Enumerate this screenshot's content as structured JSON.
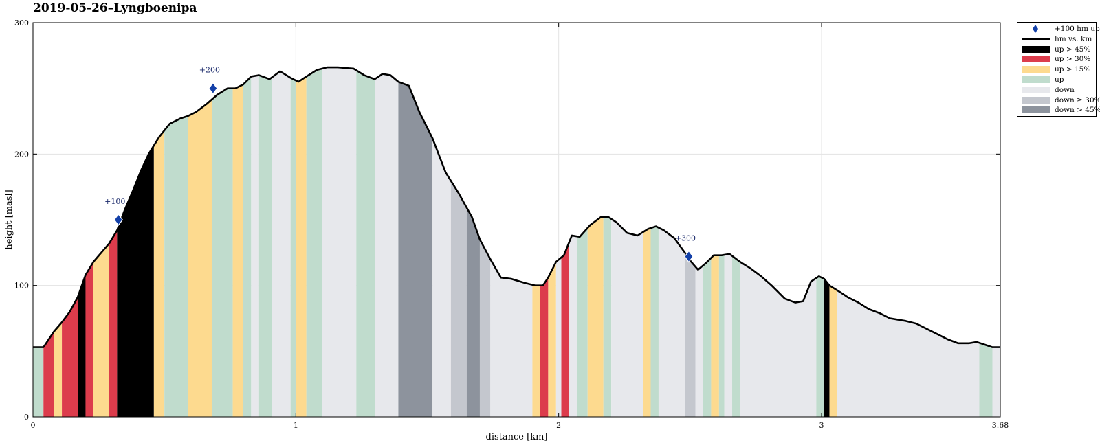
{
  "title": "2019-05-26–Lyngboenipa",
  "chart_data": {
    "type": "area",
    "title": "2019-05-26–Lyngboenipa",
    "xlabel": "distance [km]",
    "ylabel": "height [masl]",
    "xlim": [
      0,
      3.68
    ],
    "ylim": [
      0,
      300
    ],
    "xticks": [
      0,
      1,
      2,
      3,
      3.68
    ],
    "xtick_labels": [
      "0",
      "1",
      "2",
      "3",
      "3.68"
    ],
    "yticks": [
      0,
      100,
      200,
      300
    ],
    "ytick_labels": [
      "0",
      "100",
      "200",
      "300"
    ],
    "grid": true,
    "legend_position": "outside-right",
    "series": [
      {
        "name": "hm vs. km",
        "x": [
          0,
          0.04,
          0.08,
          0.11,
          0.14,
          0.17,
          0.2,
          0.23,
          0.26,
          0.29,
          0.32,
          0.35,
          0.38,
          0.41,
          0.44,
          0.48,
          0.52,
          0.56,
          0.59,
          0.62,
          0.66,
          0.7,
          0.74,
          0.77,
          0.8,
          0.83,
          0.86,
          0.9,
          0.94,
          0.98,
          1.01,
          1.04,
          1.08,
          1.12,
          1.16,
          1.22,
          1.26,
          1.3,
          1.33,
          1.36,
          1.39,
          1.43,
          1.47,
          1.52,
          1.57,
          1.62,
          1.67,
          1.7,
          1.74,
          1.78,
          1.82,
          1.87,
          1.91,
          1.94,
          1.96,
          1.99,
          2.02,
          2.05,
          2.08,
          2.12,
          2.16,
          2.19,
          2.22,
          2.26,
          2.3,
          2.34,
          2.37,
          2.4,
          2.44,
          2.48,
          2.5,
          2.53,
          2.56,
          2.59,
          2.62,
          2.65,
          2.69,
          2.73,
          2.77,
          2.81,
          2.86,
          2.9,
          2.93,
          2.96,
          2.99,
          3.01,
          3.03,
          3.07,
          3.1,
          3.14,
          3.18,
          3.22,
          3.26,
          3.29,
          3.32,
          3.36,
          3.4,
          3.44,
          3.48,
          3.52,
          3.56,
          3.59,
          3.62,
          3.65,
          3.68
        ],
        "y": [
          53,
          53,
          65,
          72,
          80,
          91,
          108,
          118,
          125,
          132,
          142,
          158,
          172,
          187,
          200,
          213,
          223,
          227,
          229,
          232,
          238,
          245,
          250,
          250,
          253,
          259,
          260,
          257,
          263,
          258,
          255,
          259,
          264,
          266,
          266,
          265,
          260,
          257,
          261,
          260,
          255,
          252,
          232,
          212,
          186,
          170,
          152,
          135,
          120,
          106,
          105,
          102,
          100,
          100,
          106,
          118,
          123,
          138,
          137,
          146,
          152,
          152,
          148,
          140,
          138,
          143,
          145,
          142,
          136,
          125,
          119,
          112,
          117,
          123,
          123,
          124,
          118,
          113,
          107,
          100,
          90,
          87,
          88,
          103,
          107,
          105,
          100,
          95,
          91,
          87,
          82,
          79,
          75,
          74,
          73,
          71,
          67,
          63,
          59,
          56,
          56,
          57,
          55,
          53,
          53
        ]
      }
    ],
    "markers": {
      "name": "+100 hm up",
      "points": [
        {
          "x": 0.325,
          "y": 150,
          "label": "+100"
        },
        {
          "x": 0.685,
          "y": 250,
          "label": "+200"
        },
        {
          "x": 2.495,
          "y": 122,
          "label": "+300"
        }
      ]
    },
    "gradient_bands": [
      {
        "from": 0.0,
        "to": 0.04,
        "cat": "up"
      },
      {
        "from": 0.04,
        "to": 0.08,
        "cat": "up30"
      },
      {
        "from": 0.08,
        "to": 0.11,
        "cat": "up15"
      },
      {
        "from": 0.11,
        "to": 0.17,
        "cat": "up30"
      },
      {
        "from": 0.17,
        "to": 0.2,
        "cat": "up45"
      },
      {
        "from": 0.2,
        "to": 0.23,
        "cat": "up30"
      },
      {
        "from": 0.23,
        "to": 0.29,
        "cat": "up15"
      },
      {
        "from": 0.29,
        "to": 0.32,
        "cat": "up30"
      },
      {
        "from": 0.32,
        "to": 0.46,
        "cat": "up45"
      },
      {
        "from": 0.46,
        "to": 0.5,
        "cat": "up15"
      },
      {
        "from": 0.5,
        "to": 0.59,
        "cat": "up"
      },
      {
        "from": 0.59,
        "to": 0.68,
        "cat": "up15"
      },
      {
        "from": 0.68,
        "to": 0.76,
        "cat": "up"
      },
      {
        "from": 0.76,
        "to": 0.8,
        "cat": "up15"
      },
      {
        "from": 0.8,
        "to": 0.83,
        "cat": "up"
      },
      {
        "from": 0.83,
        "to": 0.86,
        "cat": "down"
      },
      {
        "from": 0.86,
        "to": 0.91,
        "cat": "up"
      },
      {
        "from": 0.91,
        "to": 0.98,
        "cat": "down"
      },
      {
        "from": 0.98,
        "to": 1.0,
        "cat": "up"
      },
      {
        "from": 1.0,
        "to": 1.04,
        "cat": "up15"
      },
      {
        "from": 1.04,
        "to": 1.1,
        "cat": "up"
      },
      {
        "from": 1.1,
        "to": 1.23,
        "cat": "down"
      },
      {
        "from": 1.23,
        "to": 1.3,
        "cat": "up"
      },
      {
        "from": 1.3,
        "to": 1.39,
        "cat": "down"
      },
      {
        "from": 1.39,
        "to": 1.52,
        "cat": "down45"
      },
      {
        "from": 1.52,
        "to": 1.59,
        "cat": "down"
      },
      {
        "from": 1.59,
        "to": 1.65,
        "cat": "down30"
      },
      {
        "from": 1.65,
        "to": 1.7,
        "cat": "down45"
      },
      {
        "from": 1.7,
        "to": 1.74,
        "cat": "down30"
      },
      {
        "from": 1.74,
        "to": 1.9,
        "cat": "down"
      },
      {
        "from": 1.9,
        "to": 1.93,
        "cat": "up15"
      },
      {
        "from": 1.93,
        "to": 1.96,
        "cat": "up30"
      },
      {
        "from": 1.96,
        "to": 1.99,
        "cat": "up15"
      },
      {
        "from": 1.99,
        "to": 2.01,
        "cat": "down"
      },
      {
        "from": 2.01,
        "to": 2.04,
        "cat": "up30"
      },
      {
        "from": 2.04,
        "to": 2.07,
        "cat": "down"
      },
      {
        "from": 2.07,
        "to": 2.11,
        "cat": "up"
      },
      {
        "from": 2.11,
        "to": 2.17,
        "cat": "up15"
      },
      {
        "from": 2.17,
        "to": 2.2,
        "cat": "up"
      },
      {
        "from": 2.2,
        "to": 2.32,
        "cat": "down"
      },
      {
        "from": 2.32,
        "to": 2.35,
        "cat": "up15"
      },
      {
        "from": 2.35,
        "to": 2.38,
        "cat": "up"
      },
      {
        "from": 2.38,
        "to": 2.48,
        "cat": "down"
      },
      {
        "from": 2.48,
        "to": 2.52,
        "cat": "down30"
      },
      {
        "from": 2.52,
        "to": 2.55,
        "cat": "down"
      },
      {
        "from": 2.55,
        "to": 2.58,
        "cat": "up"
      },
      {
        "from": 2.58,
        "to": 2.61,
        "cat": "up15"
      },
      {
        "from": 2.61,
        "to": 2.63,
        "cat": "up"
      },
      {
        "from": 2.63,
        "to": 2.66,
        "cat": "down"
      },
      {
        "from": 2.66,
        "to": 2.69,
        "cat": "up"
      },
      {
        "from": 2.69,
        "to": 2.98,
        "cat": "down"
      },
      {
        "from": 2.98,
        "to": 3.01,
        "cat": "up"
      },
      {
        "from": 3.01,
        "to": 3.03,
        "cat": "up45"
      },
      {
        "from": 3.03,
        "to": 3.06,
        "cat": "up15"
      },
      {
        "from": 3.06,
        "to": 3.6,
        "cat": "down"
      },
      {
        "from": 3.6,
        "to": 3.65,
        "cat": "up"
      },
      {
        "from": 3.65,
        "to": 3.68,
        "cat": "down"
      }
    ],
    "categories": [
      {
        "key": "up45",
        "label": "up > 45%",
        "color": "#000000"
      },
      {
        "key": "up30",
        "label": "up > 30%",
        "color": "#dc3c4c"
      },
      {
        "key": "up15",
        "label": "up > 15%",
        "color": "#fdda8f"
      },
      {
        "key": "up",
        "label": "up",
        "color": "#c0dccd"
      },
      {
        "key": "down",
        "label": "down",
        "color": "#e7e8ec"
      },
      {
        "key": "down30",
        "label": "down ≥ 30%",
        "color": "#c4c7ce"
      },
      {
        "key": "down45",
        "label": "down > 45%",
        "color": "#8d939d"
      }
    ],
    "legend": [
      {
        "label": "+100 hm up",
        "kind": "marker",
        "color": "#1340a8"
      },
      {
        "label": "hm vs. km",
        "kind": "line",
        "color": "#000000"
      },
      {
        "label": "up > 45%",
        "kind": "swatch",
        "color": "#000000"
      },
      {
        "label": "up > 30%",
        "kind": "swatch",
        "color": "#dc3c4c"
      },
      {
        "label": "up > 15%",
        "kind": "swatch",
        "color": "#fdda8f"
      },
      {
        "label": "up",
        "kind": "swatch",
        "color": "#c0dccd"
      },
      {
        "label": "down",
        "kind": "swatch",
        "color": "#e7e8ec"
      },
      {
        "label": "down ≥ 30%",
        "kind": "swatch",
        "color": "#c4c7ce"
      },
      {
        "label": "down > 45%",
        "kind": "swatch",
        "color": "#8d939d"
      }
    ]
  }
}
